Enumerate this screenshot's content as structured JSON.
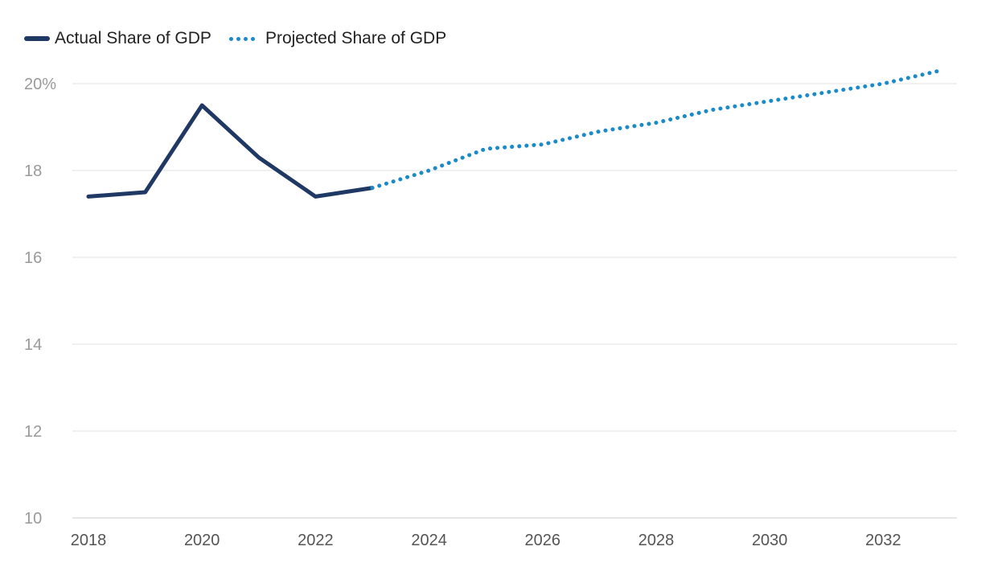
{
  "chart_data": {
    "type": "line",
    "title": "",
    "xlabel": "",
    "ylabel": "",
    "x_ticks": [
      "2018",
      "2020",
      "2022",
      "2024",
      "2026",
      "2028",
      "2030",
      "2032"
    ],
    "y_ticks": [
      "10",
      "12",
      "14",
      "16",
      "18",
      "20%"
    ],
    "y_tick_values": [
      10,
      12,
      14,
      16,
      18,
      20
    ],
    "xlim": [
      2018,
      2033.4
    ],
    "ylim": [
      10,
      21
    ],
    "grid": true,
    "legend_position": "top-left",
    "series": [
      {
        "name": "Actual Share of GDP",
        "style": "solid",
        "color": "#1f3864",
        "x": [
          2018,
          2019,
          2020,
          2021,
          2022,
          2023
        ],
        "values": [
          17.4,
          17.5,
          19.5,
          18.3,
          17.4,
          17.6
        ]
      },
      {
        "name": "Projected Share of GDP",
        "style": "dotted",
        "color": "#1a8ac9",
        "x": [
          2023,
          2024,
          2025,
          2026,
          2027,
          2028,
          2029,
          2030,
          2031,
          2032,
          2033
        ],
        "values": [
          17.6,
          18.0,
          18.5,
          18.6,
          18.9,
          19.1,
          19.4,
          19.6,
          19.8,
          20.0,
          20.3
        ]
      }
    ]
  }
}
